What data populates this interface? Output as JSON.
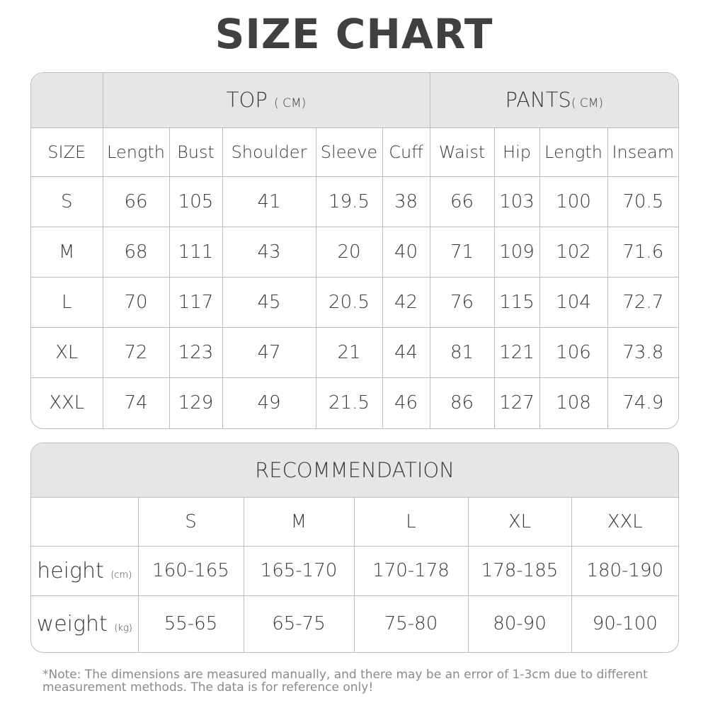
{
  "title": "SIZE CHART",
  "size_table": {
    "top_label": "TOP",
    "top_unit": "( CM)",
    "pants_label": "PANTS",
    "pants_unit": "( CM)",
    "columns": [
      "SIZE",
      "Length",
      "Bust",
      "Shoulder",
      "Sleeve",
      "Cuff",
      "Waist",
      "Hip",
      "Length",
      "Inseam"
    ],
    "rows": [
      [
        "S",
        "66",
        "105",
        "41",
        "19.5",
        "38",
        "66",
        "103",
        "100",
        "70.5"
      ],
      [
        "M",
        "68",
        "111",
        "43",
        "20",
        "40",
        "71",
        "109",
        "102",
        "71.6"
      ],
      [
        "L",
        "70",
        "117",
        "45",
        "20.5",
        "42",
        "76",
        "115",
        "104",
        "72.7"
      ],
      [
        "XL",
        "72",
        "123",
        "47",
        "21",
        "44",
        "81",
        "121",
        "106",
        "73.8"
      ],
      [
        "XXL",
        "74",
        "129",
        "49",
        "21.5",
        "46",
        "86",
        "127",
        "108",
        "74.9"
      ]
    ]
  },
  "recommendation": {
    "title": "RECOMMENDATION",
    "sizes": [
      "S",
      "M",
      "L",
      "XL",
      "XXL"
    ],
    "rows": [
      {
        "label": "height",
        "unit": "(cm)",
        "values": [
          "160-165",
          "165-170",
          "170-178",
          "178-185",
          "180-190"
        ]
      },
      {
        "label": "weight",
        "unit": "(kg)",
        "values": [
          "55-65",
          "65-75",
          "75-80",
          "80-90",
          "90-100"
        ]
      }
    ]
  },
  "note": "*Note: The dimensions are measured manually, and there may be an error of 1-3cm due to different measurement methods. The data is for reference only!"
}
